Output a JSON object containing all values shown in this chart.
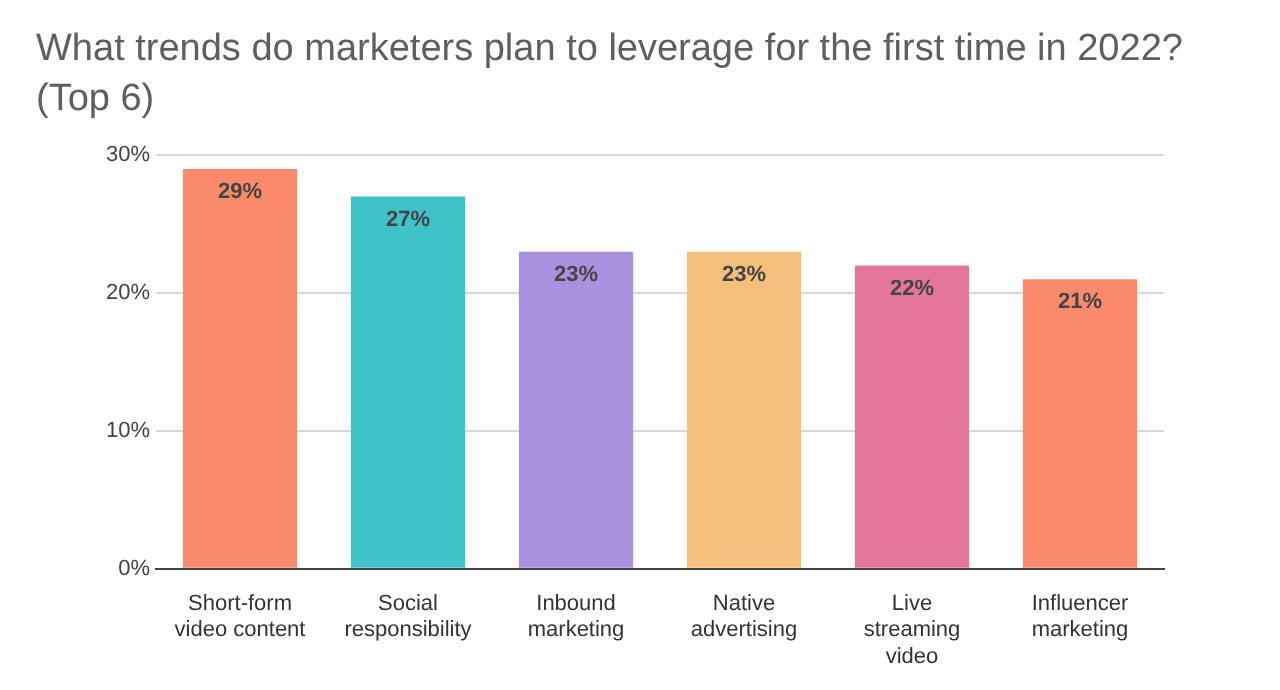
{
  "chart_data": {
    "type": "bar",
    "title": "What trends do marketers plan to leverage for the first time in 2022? (Top 6)",
    "categories": [
      "Short-form video content",
      "Social responsibility",
      "Inbound marketing",
      "Native advertising",
      "Live streaming video",
      "Influencer marketing"
    ],
    "values": [
      29,
      27,
      23,
      23,
      22,
      21
    ],
    "colors": [
      "#f98b6c",
      "#3fc3c9",
      "#aa91df",
      "#f5c07b",
      "#e5769b",
      "#f98b6c"
    ],
    "value_labels": [
      "29%",
      "27%",
      "23%",
      "23%",
      "22%",
      "21%"
    ],
    "ylim": [
      0,
      30
    ],
    "yticks": [
      {
        "value": 0,
        "label": "0%"
      },
      {
        "value": 10,
        "label": "10%"
      },
      {
        "value": 20,
        "label": "20%"
      },
      {
        "value": 30,
        "label": "30%"
      }
    ],
    "grid": "y",
    "legend": false
  }
}
